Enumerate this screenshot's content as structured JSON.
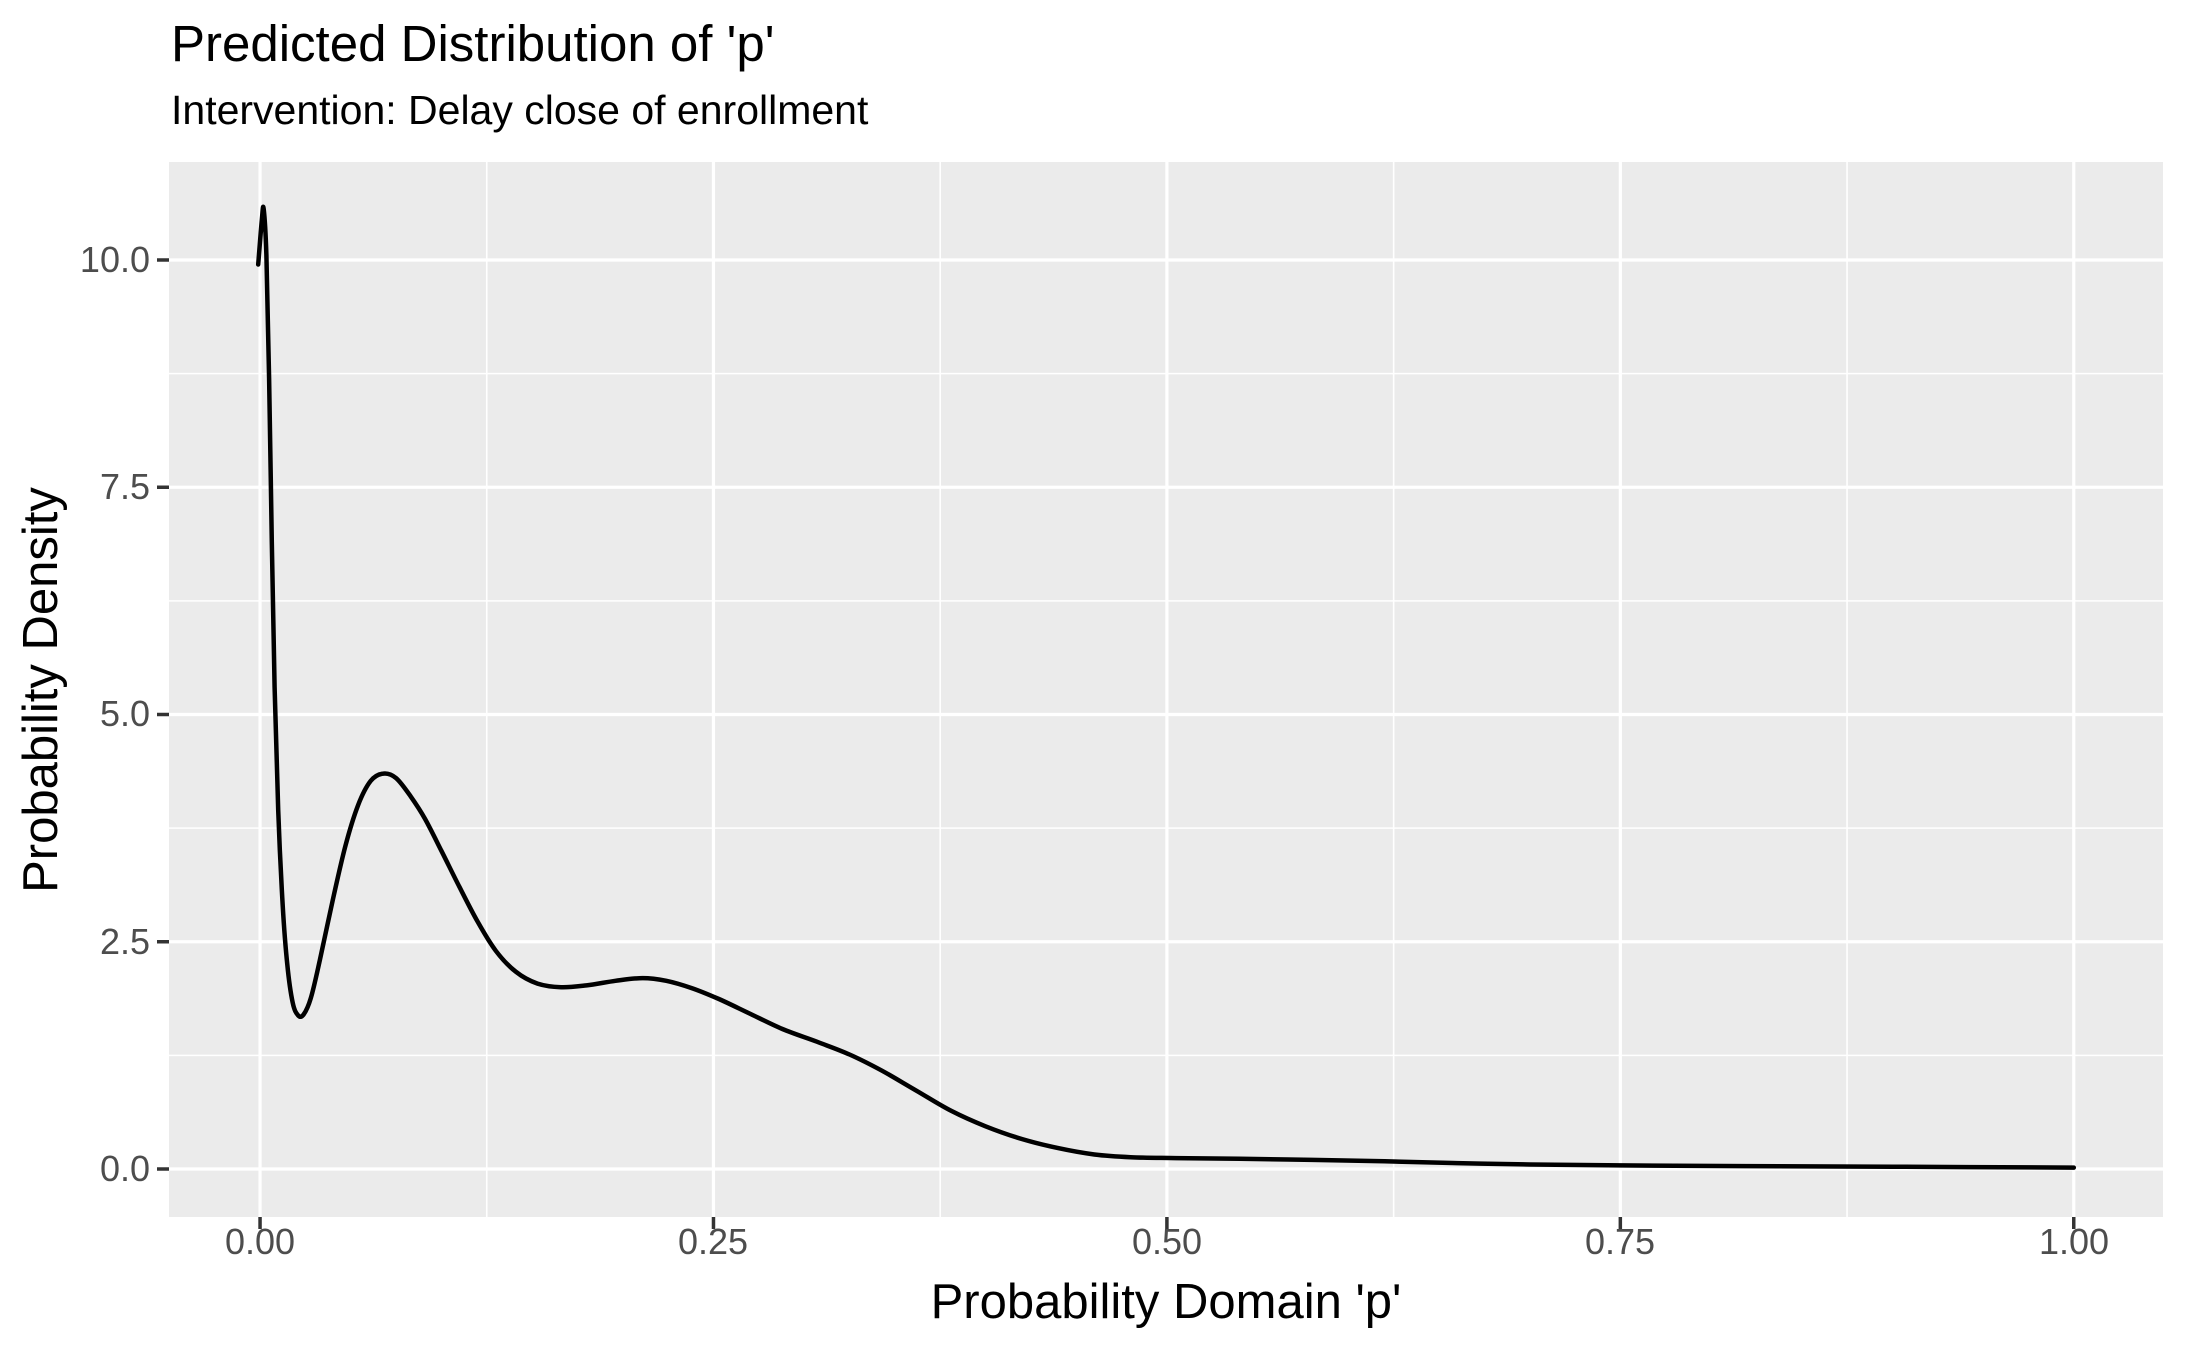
{
  "chart_data": {
    "type": "line",
    "title": "Predicted Distribution of 'p'",
    "subtitle": "Intervention: Delay close of enrollment",
    "xlabel": "Probability Domain 'p'",
    "ylabel": "Probability Density",
    "xlim": [
      -0.0502,
      1.0492
    ],
    "ylim": [
      -0.528,
      11.078
    ],
    "x_ticks": [
      0,
      0.25,
      0.5,
      0.75,
      1.0
    ],
    "x_tick_labels": [
      "0.00",
      "0.25",
      "0.50",
      "0.75",
      "1.00"
    ],
    "y_ticks": [
      0,
      2.5,
      5.0,
      7.5,
      10.0
    ],
    "y_tick_labels": [
      "0.0",
      "2.5",
      "5.0",
      "7.5",
      "10.0"
    ],
    "x_minor_ticks": [
      0.125,
      0.375,
      0.625,
      0.875
    ],
    "y_minor_ticks": [
      1.25,
      3.75,
      6.25,
      8.75
    ],
    "grid": true,
    "legend": false,
    "series": [
      {
        "name": "density",
        "color": "#000000",
        "points": [
          [
            -0.001,
            9.95
          ],
          [
            0.001,
            10.45
          ],
          [
            0.002,
            10.56
          ],
          [
            0.0035,
            10.05
          ],
          [
            0.005,
            8.7
          ],
          [
            0.0065,
            6.9
          ],
          [
            0.008,
            5.3
          ],
          [
            0.01,
            3.95
          ],
          [
            0.0125,
            2.9
          ],
          [
            0.015,
            2.25
          ],
          [
            0.018,
            1.83
          ],
          [
            0.021,
            1.69
          ],
          [
            0.024,
            1.7
          ],
          [
            0.028,
            1.88
          ],
          [
            0.033,
            2.3
          ],
          [
            0.04,
            2.95
          ],
          [
            0.047,
            3.55
          ],
          [
            0.054,
            4.0
          ],
          [
            0.061,
            4.27
          ],
          [
            0.068,
            4.35
          ],
          [
            0.075,
            4.3
          ],
          [
            0.083,
            4.1
          ],
          [
            0.091,
            3.85
          ],
          [
            0.1,
            3.5
          ],
          [
            0.11,
            3.1
          ],
          [
            0.12,
            2.72
          ],
          [
            0.13,
            2.4
          ],
          [
            0.141,
            2.17
          ],
          [
            0.153,
            2.04
          ],
          [
            0.166,
            2.0
          ],
          [
            0.18,
            2.02
          ],
          [
            0.196,
            2.07
          ],
          [
            0.211,
            2.1
          ],
          [
            0.224,
            2.07
          ],
          [
            0.238,
            1.99
          ],
          [
            0.253,
            1.87
          ],
          [
            0.27,
            1.71
          ],
          [
            0.288,
            1.54
          ],
          [
            0.307,
            1.4
          ],
          [
            0.325,
            1.26
          ],
          [
            0.343,
            1.08
          ],
          [
            0.362,
            0.86
          ],
          [
            0.381,
            0.64
          ],
          [
            0.4,
            0.47
          ],
          [
            0.42,
            0.33
          ],
          [
            0.44,
            0.23
          ],
          [
            0.46,
            0.16
          ],
          [
            0.48,
            0.13
          ],
          [
            0.505,
            0.12
          ],
          [
            0.54,
            0.113
          ],
          [
            0.58,
            0.1
          ],
          [
            0.62,
            0.085
          ],
          [
            0.66,
            0.065
          ],
          [
            0.7,
            0.05
          ],
          [
            0.75,
            0.04
          ],
          [
            0.82,
            0.032
          ],
          [
            0.9,
            0.025
          ],
          [
            1.0,
            0.015
          ]
        ]
      }
    ],
    "colors": {
      "background": "#FFFFFF",
      "panel_background": "#EBEBEB",
      "gridline": "#FFFFFF",
      "curve": "#000000",
      "tick_mark": "#333333",
      "tick_label": "#4D4D4D",
      "title_text": "#000000"
    }
  }
}
